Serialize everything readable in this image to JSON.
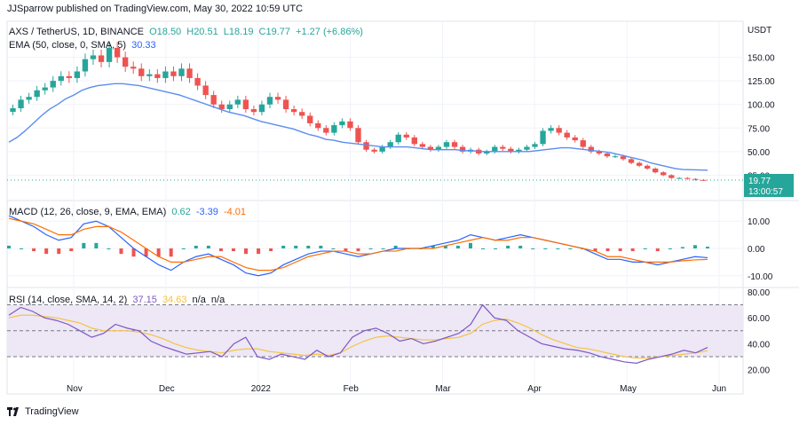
{
  "header": {
    "published": "JJSparrow published on TradingView.com, May 30, 2022 10:59 UTC"
  },
  "main_legend": {
    "symbol": "AXS / TetherUS, 1D, BINANCE",
    "open": "O18.50",
    "high": "H20.51",
    "low": "L18.19",
    "close": "C19.77",
    "change": "+1.27 (+6.86%)",
    "ema_label": "EMA (50, close, 0, SMA, 5)",
    "ema_value": "30.33"
  },
  "macd_legend": {
    "label": "MACD (12, 26, close, 9, EMA, EMA)",
    "hist": "0.62",
    "macd": "-3.39",
    "signal": "-4.01"
  },
  "rsi_legend": {
    "label": "RSI (14, close, SMA, 14, 2)",
    "rsi": "37.15",
    "ma": "34.63",
    "na1": "n/a",
    "na2": "n/a"
  },
  "currency": "USDT",
  "last_price": {
    "value": "19.77",
    "countdown": "13:00:57"
  },
  "footer": {
    "brand": "TradingView"
  },
  "colors": {
    "up": "#26a69a",
    "down": "#ef5350",
    "ema": "#5b8def",
    "macd": "#2962ff",
    "signal": "#ff6d00",
    "rsi": "#7e57c2",
    "rsi_ma": "#f6c343",
    "rsi_band": "#ede7f6"
  },
  "chart_data": [
    {
      "type": "candlestick",
      "title": "AXS / TetherUS, 1D, BINANCE",
      "x_ticks": [
        "Nov",
        "Dec",
        "2022",
        "Feb",
        "Mar",
        "Apr",
        "May",
        "Jun"
      ],
      "y_ticks": [
        "150.00",
        "125.00",
        "100.00",
        "75.00",
        "50.00",
        "25.00"
      ],
      "ylim": [
        0,
        175
      ],
      "ohlc_last": {
        "open": 18.5,
        "high": 20.51,
        "low": 18.19,
        "close": 19.77
      },
      "ema50_last": 30.33,
      "close_series": [
        96,
        105,
        108,
        115,
        118,
        125,
        130,
        128,
        135,
        148,
        152,
        145,
        160,
        150,
        140,
        138,
        130,
        132,
        128,
        135,
        130,
        138,
        128,
        120,
        110,
        100,
        95,
        100,
        105,
        95,
        92,
        100,
        108,
        105,
        95,
        92,
        88,
        80,
        75,
        70,
        78,
        82,
        75,
        60,
        52,
        50,
        55,
        60,
        68,
        65,
        58,
        55,
        52,
        55,
        60,
        55,
        50,
        52,
        48,
        50,
        55,
        53,
        50,
        52,
        55,
        58,
        72,
        75,
        70,
        65,
        62,
        55,
        50,
        48,
        45,
        45,
        42,
        38,
        35,
        32,
        28,
        25,
        22,
        22,
        21,
        20,
        19.77
      ],
      "ema_series": [
        60,
        65,
        72,
        80,
        88,
        95,
        100,
        106,
        110,
        115,
        118,
        120,
        121,
        122,
        122,
        121,
        120,
        118,
        116,
        114,
        112,
        110,
        107,
        104,
        101,
        98,
        95,
        92,
        90,
        88,
        85,
        82,
        80,
        78,
        76,
        74,
        71,
        68,
        66,
        63,
        62,
        60,
        59,
        58,
        57,
        56,
        55,
        55,
        55,
        55,
        54,
        53,
        52,
        52,
        52,
        52,
        51,
        51,
        50,
        50,
        50,
        50,
        50,
        50,
        50,
        51,
        52,
        53,
        54,
        54,
        53,
        52,
        51,
        50,
        49,
        47,
        45,
        43,
        41,
        38,
        36,
        34,
        32,
        31,
        30.8,
        30.5,
        30.33
      ]
    },
    {
      "type": "line",
      "title": "MACD (12, 26, close, 9, EMA, EMA)",
      "y_ticks": [
        "10.00",
        "0.00",
        "-10.00"
      ],
      "ylim": [
        -13,
        13
      ],
      "last": {
        "histogram": 0.62,
        "macd": -3.39,
        "signal": -4.01
      },
      "series": [
        {
          "name": "MACD",
          "values": [
            12,
            10,
            8,
            5,
            3,
            4,
            9,
            10,
            8,
            4,
            0,
            -3,
            -6,
            -8,
            -5,
            -3,
            -2,
            -4,
            -6,
            -9,
            -10,
            -9,
            -6,
            -4,
            -2,
            -1,
            -1,
            -2,
            -3,
            -2,
            -1,
            0,
            0,
            0,
            1,
            2,
            3,
            5,
            4,
            3,
            4,
            5,
            4,
            3,
            2,
            1,
            0,
            -2,
            -4,
            -4,
            -5,
            -5,
            -6,
            -5,
            -4,
            -3,
            -3.39
          ]
        },
        {
          "name": "Signal",
          "values": [
            11,
            10,
            9,
            7,
            5,
            5,
            7,
            8,
            8,
            6,
            3,
            0,
            -3,
            -5,
            -5,
            -4,
            -3,
            -3,
            -5,
            -7,
            -8,
            -8,
            -7,
            -5,
            -3,
            -2,
            -1,
            -1,
            -2,
            -2,
            -1,
            -1,
            0,
            0,
            0,
            1,
            2,
            3,
            4,
            3,
            3,
            4,
            4,
            3,
            2,
            1,
            0,
            -1,
            -3,
            -3,
            -4,
            -5,
            -5,
            -5,
            -4.5,
            -4.2,
            -4.01
          ]
        }
      ]
    },
    {
      "type": "line",
      "title": "RSI (14, close, SMA, 14, 2)",
      "y_ticks": [
        "80.00",
        "60.00",
        "40.00",
        "20.00"
      ],
      "ylim": [
        15,
        82
      ],
      "bands": [
        30,
        50,
        70
      ],
      "last": {
        "rsi": 37.15,
        "ma": 34.63
      },
      "series": [
        {
          "name": "RSI",
          "values": [
            62,
            68,
            65,
            60,
            58,
            55,
            50,
            45,
            48,
            55,
            52,
            50,
            42,
            38,
            35,
            32,
            33,
            34,
            30,
            40,
            45,
            30,
            28,
            32,
            30,
            28,
            35,
            30,
            33,
            45,
            50,
            52,
            48,
            42,
            44,
            40,
            42,
            45,
            48,
            55,
            70,
            60,
            58,
            50,
            45,
            40,
            38,
            36,
            35,
            33,
            30,
            28,
            26,
            25,
            28,
            30,
            32,
            35,
            33,
            37.15
          ]
        },
        {
          "name": "RSI MA",
          "values": [
            60,
            62,
            62,
            61,
            60,
            58,
            56,
            52,
            50,
            50,
            50,
            49,
            47,
            44,
            40,
            37,
            35,
            34,
            33,
            35,
            36,
            36,
            34,
            33,
            32,
            31,
            32,
            31,
            33,
            38,
            42,
            45,
            46,
            45,
            44,
            43,
            43,
            44,
            45,
            48,
            55,
            58,
            59,
            56,
            52,
            47,
            43,
            40,
            37,
            36,
            34,
            32,
            30,
            29,
            29,
            30,
            31,
            32,
            33,
            34.63
          ]
        }
      ]
    }
  ]
}
